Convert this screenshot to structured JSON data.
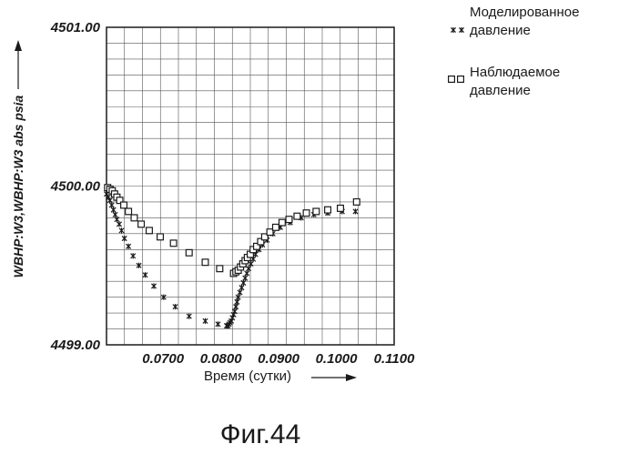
{
  "figure_caption": "Фиг.44",
  "chart_data": {
    "type": "scatter",
    "title": "",
    "xlabel": "Время (сутки)",
    "ylabel": "WBHP:W3,WBHP:W3 abs psia",
    "xlim": [
      0.0602,
      0.11
    ],
    "ylim": [
      4499.0,
      4501.0
    ],
    "x_ticks": [
      {
        "value": 0.07,
        "label": "0.0700"
      },
      {
        "value": 0.08,
        "label": "0.0800"
      },
      {
        "value": 0.09,
        "label": "0.0900"
      },
      {
        "value": 0.1,
        "label": "0.1000"
      },
      {
        "value": 0.11,
        "label": "0.1100"
      }
    ],
    "y_ticks": [
      {
        "value": 4499.0,
        "label": "4499.00"
      },
      {
        "value": 4500.0,
        "label": "4500.00"
      },
      {
        "value": 4501.0,
        "label": "4501.00"
      }
    ],
    "grid": true,
    "legend_position": "top-right",
    "series": [
      {
        "name": "Моделированное давление",
        "marker": "star",
        "x": [
          0.0602,
          0.0605,
          0.0608,
          0.0611,
          0.0614,
          0.0617,
          0.062,
          0.0624,
          0.0628,
          0.0633,
          0.064,
          0.0648,
          0.0658,
          0.0669,
          0.0684,
          0.0701,
          0.0721,
          0.0745,
          0.0773,
          0.0795,
          0.081,
          0.0812,
          0.0814,
          0.0816,
          0.0818,
          0.082,
          0.0822,
          0.0824,
          0.0826,
          0.0828,
          0.083,
          0.0833,
          0.0836,
          0.0839,
          0.0842,
          0.0845,
          0.0848,
          0.0852,
          0.0856,
          0.086,
          0.0866,
          0.0872,
          0.088,
          0.089,
          0.0903,
          0.092,
          0.0939,
          0.0961,
          0.0985,
          0.101,
          0.1033
        ],
        "y": [
          4499.95,
          4499.93,
          4499.91,
          4499.88,
          4499.85,
          4499.82,
          4499.79,
          4499.76,
          4499.72,
          4499.67,
          4499.62,
          4499.56,
          4499.5,
          4499.44,
          4499.37,
          4499.3,
          4499.24,
          4499.18,
          4499.15,
          4499.13,
          4499.12,
          4499.12,
          4499.13,
          4499.14,
          4499.15,
          4499.17,
          4499.19,
          4499.21,
          4499.24,
          4499.27,
          4499.3,
          4499.33,
          4499.36,
          4499.39,
          4499.42,
          4499.45,
          4499.48,
          4499.51,
          4499.54,
          4499.57,
          4499.6,
          4499.63,
          4499.66,
          4499.7,
          4499.74,
          4499.77,
          4499.8,
          4499.82,
          4499.83,
          4499.84,
          4499.84
        ]
      },
      {
        "name": "Наблюдаемое давление",
        "marker": "square",
        "x": [
          0.0604,
          0.0608,
          0.0612,
          0.0616,
          0.062,
          0.0625,
          0.0632,
          0.064,
          0.065,
          0.0662,
          0.0676,
          0.0695,
          0.0718,
          0.0745,
          0.0773,
          0.0798,
          0.0822,
          0.0826,
          0.083,
          0.0834,
          0.0838,
          0.0842,
          0.0846,
          0.0851,
          0.0856,
          0.0862,
          0.0869,
          0.0876,
          0.0885,
          0.0895,
          0.0906,
          0.0918,
          0.0932,
          0.0948,
          0.0965,
          0.0985,
          0.1007,
          0.1035
        ],
        "y": [
          4499.99,
          4499.98,
          4499.97,
          4499.95,
          4499.93,
          4499.91,
          4499.88,
          4499.84,
          4499.8,
          4499.76,
          4499.72,
          4499.68,
          4499.64,
          4499.58,
          4499.52,
          4499.48,
          4499.45,
          4499.46,
          4499.47,
          4499.49,
          4499.51,
          4499.53,
          4499.55,
          4499.57,
          4499.6,
          4499.62,
          4499.65,
          4499.68,
          4499.71,
          4499.74,
          4499.77,
          4499.79,
          4499.81,
          4499.83,
          4499.84,
          4499.85,
          4499.86,
          4499.9
        ]
      }
    ]
  }
}
